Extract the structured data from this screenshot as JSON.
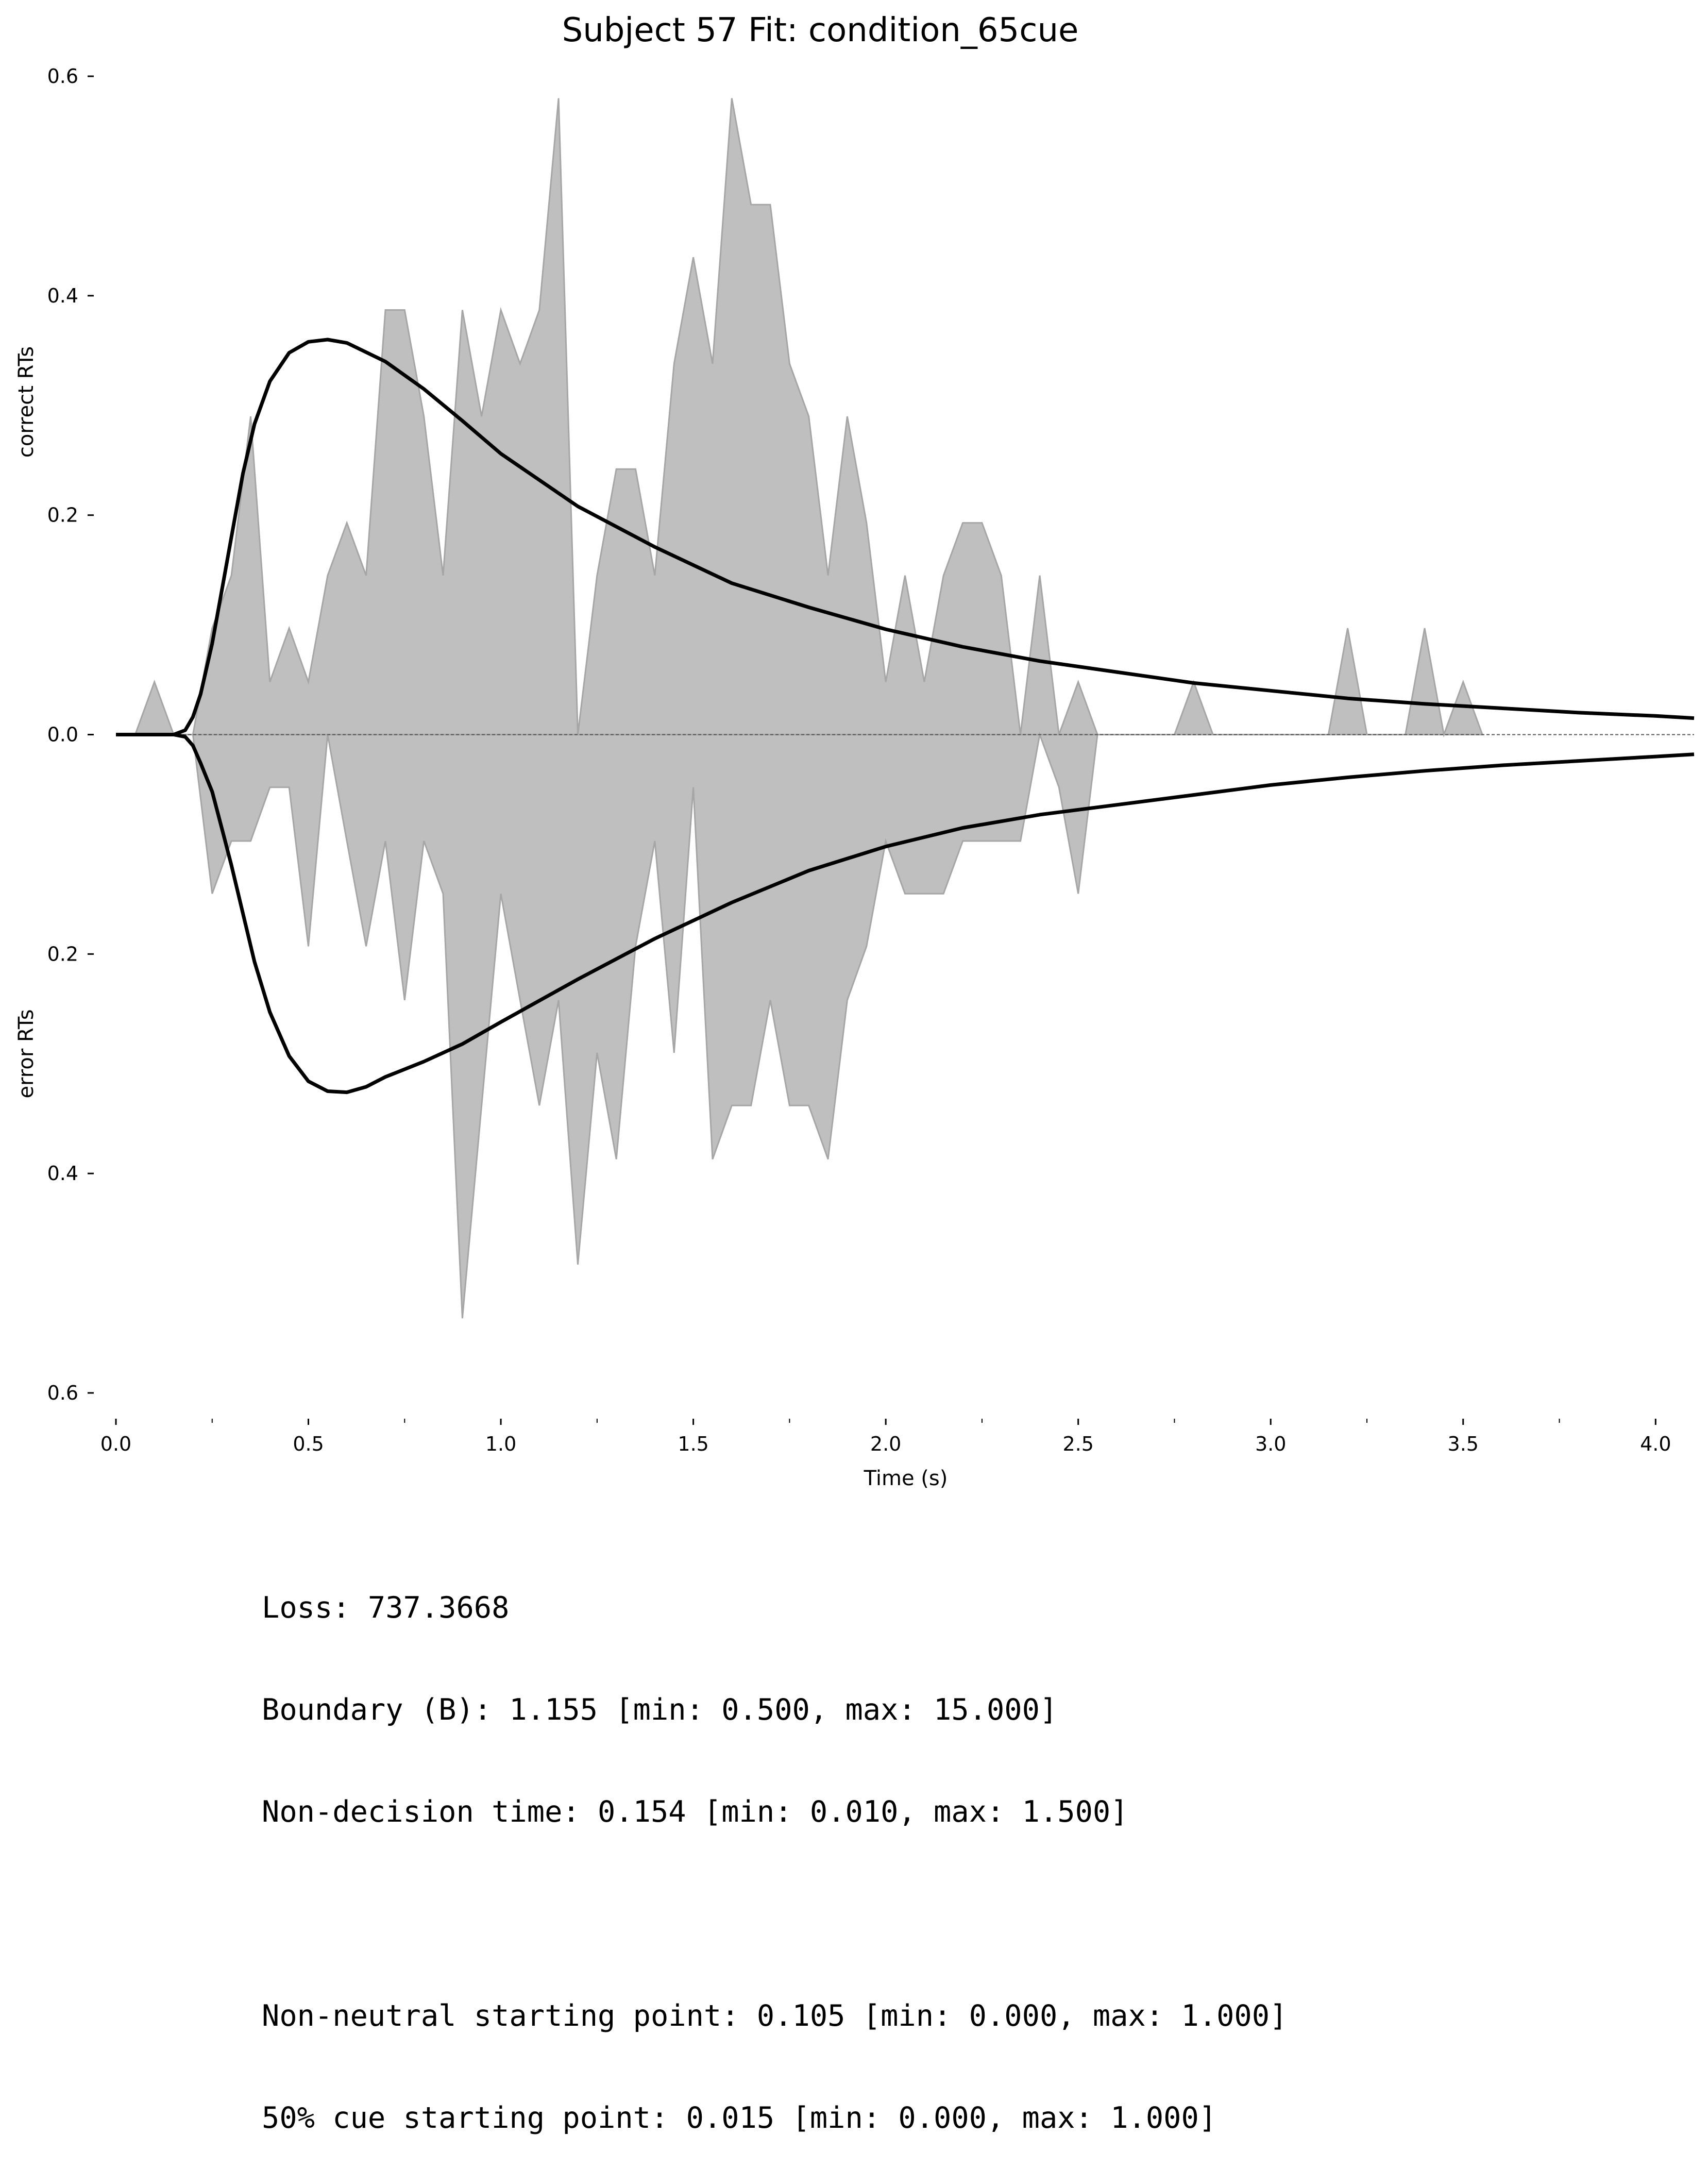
{
  "chart_data": {
    "type": "area",
    "title": "Subject 57 Fit: condition_65cue",
    "xlabel": "Time (s)",
    "ylabel_top": "correct RTs",
    "ylabel_bottom": "error RTs",
    "xlim": [
      0.0,
      4.1
    ],
    "ylim": [
      -0.6,
      0.6
    ],
    "x_ticks": [
      0.0,
      0.5,
      1.0,
      1.5,
      2.0,
      2.5,
      3.0,
      3.5,
      4.0
    ],
    "x_tick_labels": [
      "0.0",
      "0.5",
      "1.0",
      "1.5",
      "2.0",
      "2.5",
      "3.0",
      "3.5",
      "4.0"
    ],
    "y_ticks": [
      0.6,
      0.4,
      0.2,
      0.0,
      -0.2,
      -0.4,
      -0.6
    ],
    "y_tick_labels": [
      "0.6",
      "0.4",
      "0.2",
      "0.0",
      "0.2",
      "0.4",
      "0.6"
    ],
    "grid": false,
    "histogram_color": "#bfbfbf",
    "histogram_edge_color": "#a6a6a6",
    "model_curve_color": "#000000",
    "correct_histogram": {
      "x": [
        0.0,
        0.05,
        0.1,
        0.15,
        0.2,
        0.25,
        0.3,
        0.35,
        0.4,
        0.45,
        0.5,
        0.55,
        0.6,
        0.65,
        0.7,
        0.75,
        0.8,
        0.85,
        0.9,
        0.95,
        1.0,
        1.05,
        1.1,
        1.15,
        1.2,
        1.25,
        1.3,
        1.35,
        1.4,
        1.45,
        1.5,
        1.55,
        1.6,
        1.65,
        1.7,
        1.75,
        1.8,
        1.85,
        1.9,
        1.95,
        2.0,
        2.05,
        2.1,
        2.15,
        2.2,
        2.25,
        2.3,
        2.35,
        2.4,
        2.45,
        2.5,
        2.55,
        2.6,
        2.65,
        2.7,
        2.75,
        2.8,
        2.85,
        2.9,
        2.95,
        3.0,
        3.05,
        3.1,
        3.15,
        3.2,
        3.25,
        3.3,
        3.35,
        3.4,
        3.45,
        3.5,
        3.55
      ],
      "y": [
        0.0,
        0.0,
        0.048,
        0.0,
        0.0,
        0.097,
        0.145,
        0.29,
        0.048,
        0.097,
        0.048,
        0.145,
        0.193,
        0.145,
        0.387,
        0.387,
        0.29,
        0.145,
        0.387,
        0.29,
        0.387,
        0.338,
        0.387,
        0.58,
        0.0,
        0.145,
        0.242,
        0.242,
        0.145,
        0.338,
        0.435,
        0.338,
        0.58,
        0.483,
        0.483,
        0.338,
        0.29,
        0.145,
        0.29,
        0.193,
        0.048,
        0.145,
        0.048,
        0.145,
        0.193,
        0.193,
        0.145,
        0.0,
        0.145,
        0.0,
        0.048,
        0.0,
        0.0,
        0.0,
        0.0,
        0.0,
        0.048,
        0.0,
        0.0,
        0.0,
        0.0,
        0.0,
        0.0,
        0.0,
        0.097,
        0.0,
        0.0,
        0.0,
        0.097,
        0.0,
        0.048,
        0.0
      ]
    },
    "error_histogram": {
      "x": [
        0.0,
        0.05,
        0.1,
        0.15,
        0.2,
        0.25,
        0.3,
        0.35,
        0.4,
        0.45,
        0.5,
        0.55,
        0.6,
        0.65,
        0.7,
        0.75,
        0.8,
        0.85,
        0.9,
        0.95,
        1.0,
        1.05,
        1.1,
        1.15,
        1.2,
        1.25,
        1.3,
        1.35,
        1.4,
        1.45,
        1.5,
        1.55,
        1.6,
        1.65,
        1.7,
        1.75,
        1.8,
        1.85,
        1.9,
        1.95,
        2.0,
        2.05,
        2.1,
        2.15,
        2.2,
        2.25,
        2.3,
        2.35,
        2.4,
        2.45,
        2.5,
        2.55,
        2.6
      ],
      "y": [
        0.0,
        0.0,
        0.0,
        0.0,
        0.0,
        0.145,
        0.097,
        0.097,
        0.048,
        0.048,
        0.193,
        0.0,
        0.097,
        0.193,
        0.097,
        0.242,
        0.097,
        0.145,
        0.532,
        0.338,
        0.145,
        0.242,
        0.338,
        0.242,
        0.483,
        0.29,
        0.387,
        0.193,
        0.097,
        0.29,
        0.048,
        0.387,
        0.338,
        0.338,
        0.242,
        0.338,
        0.338,
        0.387,
        0.242,
        0.193,
        0.097,
        0.145,
        0.145,
        0.145,
        0.097,
        0.097,
        0.097,
        0.097,
        0.0,
        0.048,
        0.145,
        0.0,
        0.0
      ]
    },
    "model_correct": {
      "x": [
        0.0,
        0.15,
        0.18,
        0.2,
        0.22,
        0.25,
        0.28,
        0.3,
        0.33,
        0.36,
        0.4,
        0.45,
        0.5,
        0.55,
        0.6,
        0.7,
        0.8,
        0.9,
        1.0,
        1.2,
        1.4,
        1.6,
        1.8,
        2.0,
        2.2,
        2.4,
        2.6,
        2.8,
        3.0,
        3.2,
        3.4,
        3.6,
        3.8,
        4.0,
        4.1
      ],
      "y": [
        0.0,
        0.0,
        0.004,
        0.016,
        0.037,
        0.083,
        0.141,
        0.18,
        0.238,
        0.283,
        0.322,
        0.348,
        0.358,
        0.36,
        0.357,
        0.34,
        0.315,
        0.286,
        0.256,
        0.208,
        0.171,
        0.138,
        0.116,
        0.096,
        0.08,
        0.067,
        0.057,
        0.047,
        0.04,
        0.033,
        0.028,
        0.024,
        0.02,
        0.017,
        0.015
      ]
    },
    "model_error": {
      "x": [
        0.0,
        0.15,
        0.18,
        0.2,
        0.22,
        0.25,
        0.28,
        0.3,
        0.33,
        0.36,
        0.4,
        0.45,
        0.5,
        0.55,
        0.6,
        0.65,
        0.7,
        0.8,
        0.9,
        1.0,
        1.2,
        1.4,
        1.6,
        1.8,
        2.0,
        2.2,
        2.4,
        2.6,
        2.8,
        3.0,
        3.2,
        3.4,
        3.6,
        3.8,
        4.0,
        4.1
      ],
      "y": [
        0.0,
        0.0,
        0.002,
        0.01,
        0.026,
        0.052,
        0.092,
        0.119,
        0.163,
        0.207,
        0.253,
        0.293,
        0.316,
        0.325,
        0.326,
        0.321,
        0.312,
        0.298,
        0.282,
        0.262,
        0.223,
        0.186,
        0.153,
        0.124,
        0.102,
        0.085,
        0.073,
        0.064,
        0.055,
        0.046,
        0.039,
        0.033,
        0.028,
        0.024,
        0.02,
        0.018
      ]
    }
  },
  "stats": {
    "loss": "Loss: 737.3668",
    "boundary": "Boundary (B): 1.155 [min: 0.500, max: 15.000]",
    "non_decision_time": "Non-decision time: 0.154 [min: 0.010, max: 1.500]",
    "blank": "",
    "non_neutral_starting_point": "Non-neutral starting point: 0.105 [min: 0.000, max: 1.000]",
    "cue_starting_point": "50% cue starting point: 0.015 [min: 0.000, max: 1.000]"
  }
}
